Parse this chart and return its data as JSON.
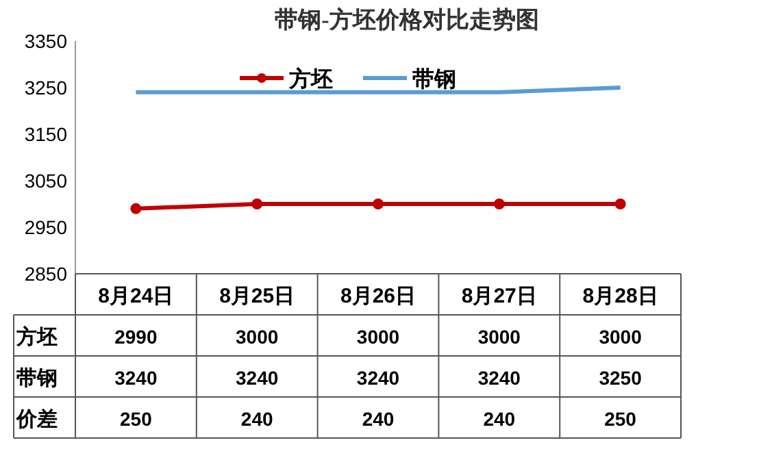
{
  "chart_data": {
    "type": "line",
    "title": "带钢-方坯价格对比走势图",
    "categories": [
      "8月24日",
      "8月25日",
      "8月26日",
      "8月27日",
      "8月28日"
    ],
    "series": [
      {
        "name": "方坯",
        "color": "#c00000",
        "marker": "circle",
        "values": [
          2990,
          3000,
          3000,
          3000,
          3000
        ]
      },
      {
        "name": "带钢",
        "color": "#5b9bd5",
        "marker": "none",
        "values": [
          3240,
          3240,
          3240,
          3240,
          3250
        ]
      }
    ],
    "ylim": [
      2850,
      3350
    ],
    "yticks": [
      2850,
      2950,
      3050,
      3150,
      3250,
      3350
    ],
    "legend": "top",
    "data_labels": true,
    "annotations": [
      "价差",
      "250",
      "240",
      "240",
      "240",
      "250"
    ]
  }
}
